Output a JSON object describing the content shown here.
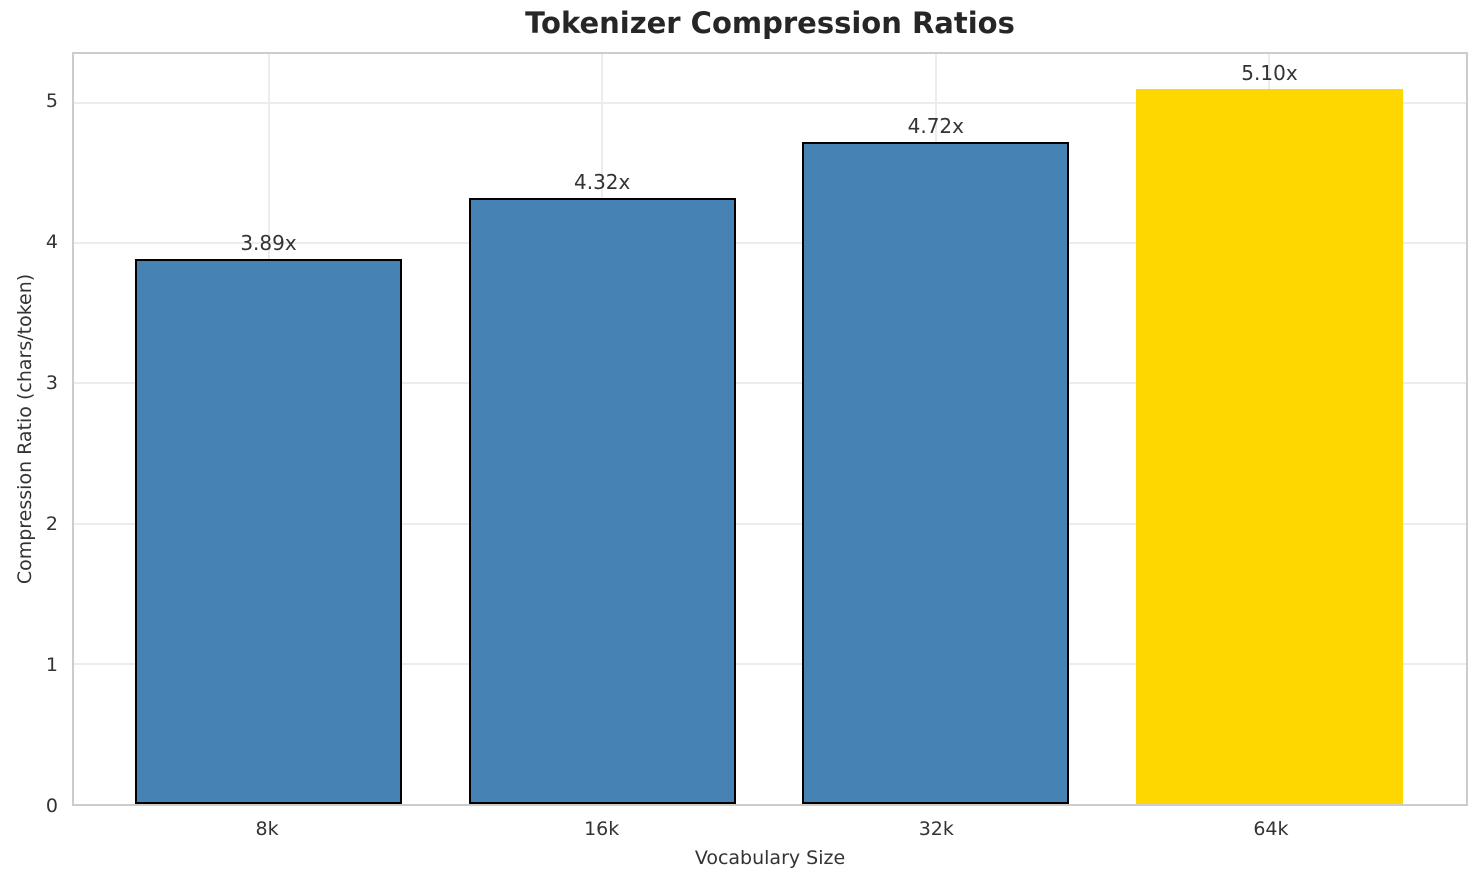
{
  "chart_data": {
    "type": "bar",
    "title": "Tokenizer Compression Ratios",
    "xlabel": "Vocabulary Size",
    "ylabel": "Compression Ratio (chars/token)",
    "categories": [
      "8k",
      "16k",
      "32k",
      "64k"
    ],
    "values": [
      3.89,
      4.32,
      4.72,
      5.1
    ],
    "bar_labels": [
      "3.89x",
      "4.32x",
      "4.72x",
      "5.10x"
    ],
    "bar_colors": [
      "#4682B4",
      "#4682B4",
      "#4682B4",
      "#FFD700"
    ],
    "bar_edge_colors": [
      "#000000",
      "#000000",
      "#000000",
      "none"
    ],
    "yticks": [
      0,
      1,
      2,
      3,
      4,
      5
    ],
    "ylim": [
      0,
      5.35
    ],
    "xlim": [
      -0.583,
      3.589
    ],
    "bar_width": 0.8,
    "grid": "both",
    "legend": "none",
    "grid_color": "#ececec",
    "spine_color": "#cccccc",
    "text_color": "#333333",
    "title_color": "#262626",
    "background": "#ffffff"
  }
}
